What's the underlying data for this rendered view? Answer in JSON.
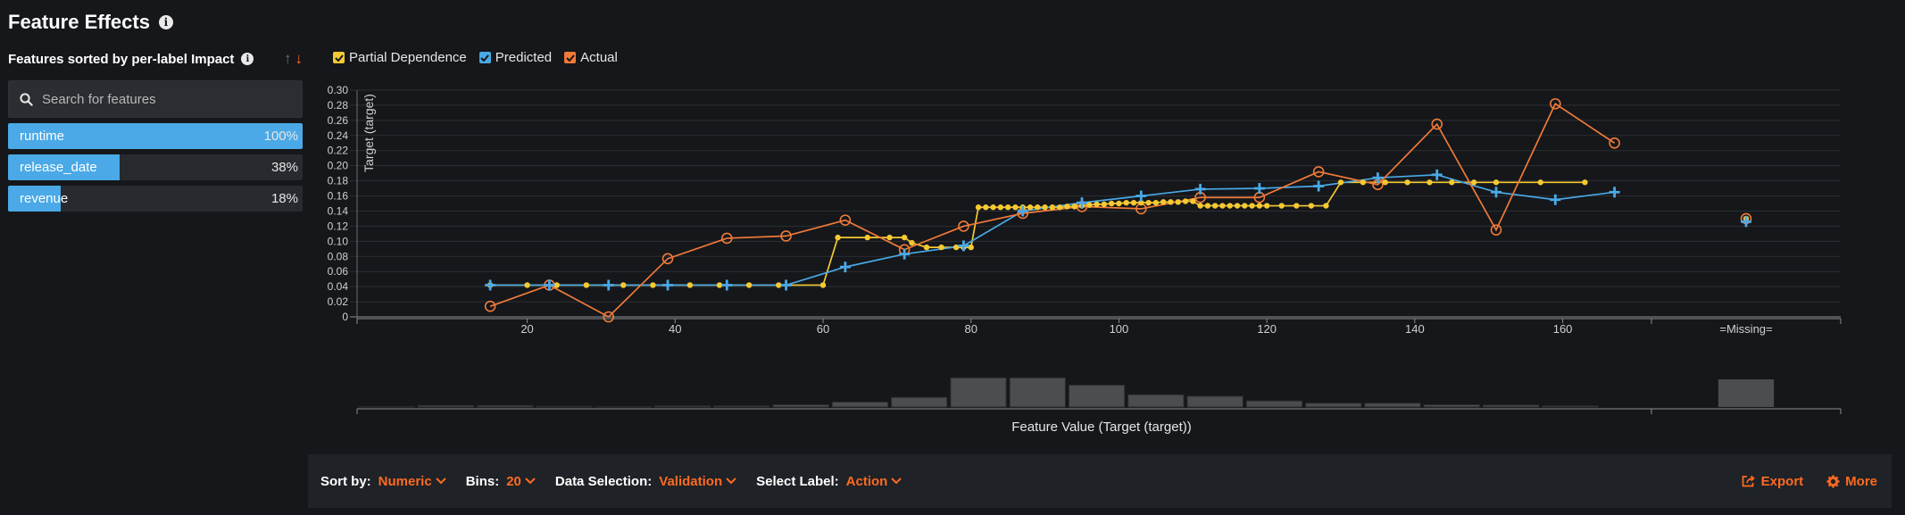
{
  "page": {
    "title": "Feature Effects"
  },
  "features": {
    "sort_label": "Features sorted by per-label Impact",
    "search_placeholder": "Search for features",
    "items": [
      {
        "name": "runtime",
        "impact_label": "100%",
        "impact": 1.0
      },
      {
        "name": "release_date",
        "impact_label": "38%",
        "impact": 0.38
      },
      {
        "name": "revenue",
        "impact_label": "18%",
        "impact": 0.18
      }
    ]
  },
  "legend": {
    "items": [
      {
        "label": "Partial Dependence",
        "color": "#f5c932"
      },
      {
        "label": "Predicted",
        "color": "#4aa9e6"
      },
      {
        "label": "Actual",
        "color": "#f07a3a"
      }
    ]
  },
  "chart_data": {
    "type": "line",
    "ylabel": "Target (target)",
    "xlabel": "Feature Value (Target (target))",
    "xlim": [
      -3,
      172
    ],
    "ylim": [
      0,
      0.3
    ],
    "x_ticks": [
      "20",
      "40",
      "60",
      "80",
      "100",
      "120",
      "140",
      "160"
    ],
    "x_tick_values": [
      20,
      40,
      60,
      80,
      100,
      120,
      140,
      160
    ],
    "y_ticks": [
      "0",
      "0.02",
      "0.04",
      "0.06",
      "0.08",
      "0.10",
      "0.12",
      "0.14",
      "0.16",
      "0.18",
      "0.20",
      "0.22",
      "0.24",
      "0.26",
      "0.28",
      "0.30"
    ],
    "y_tick_values": [
      0,
      0.02,
      0.04,
      0.06,
      0.08,
      0.1,
      0.12,
      0.14,
      0.16,
      0.18,
      0.2,
      0.22,
      0.24,
      0.26,
      0.28,
      0.3
    ],
    "missing_label": "=Missing=",
    "grid": true,
    "series": [
      {
        "name": "Partial Dependence",
        "color": "#f5c932",
        "marker": "dot",
        "x": [
          15,
          20,
          24,
          28,
          33,
          37,
          42,
          46,
          50,
          54,
          60,
          62,
          66,
          69,
          71,
          72,
          74,
          76,
          78,
          79,
          80,
          81,
          82,
          83,
          84,
          85,
          86,
          87,
          88,
          89,
          90,
          91,
          92,
          93,
          94,
          95,
          96,
          97,
          98,
          99,
          100,
          101,
          102,
          103,
          104,
          105,
          106,
          107,
          108,
          109,
          110,
          111,
          112,
          113,
          114,
          115,
          116,
          117,
          118,
          119,
          120,
          122,
          124,
          126,
          128,
          130,
          133,
          136,
          139,
          142,
          145,
          148,
          151,
          157,
          163
        ],
        "y": [
          0.042,
          0.042,
          0.042,
          0.042,
          0.042,
          0.042,
          0.042,
          0.042,
          0.042,
          0.042,
          0.042,
          0.105,
          0.105,
          0.105,
          0.105,
          0.098,
          0.092,
          0.092,
          0.092,
          0.092,
          0.092,
          0.145,
          0.145,
          0.145,
          0.145,
          0.145,
          0.145,
          0.145,
          0.145,
          0.145,
          0.145,
          0.145,
          0.145,
          0.146,
          0.146,
          0.147,
          0.148,
          0.149,
          0.149,
          0.15,
          0.15,
          0.151,
          0.151,
          0.151,
          0.151,
          0.151,
          0.152,
          0.152,
          0.152,
          0.153,
          0.153,
          0.147,
          0.147,
          0.147,
          0.147,
          0.147,
          0.147,
          0.147,
          0.147,
          0.147,
          0.147,
          0.147,
          0.147,
          0.147,
          0.147,
          0.178,
          0.178,
          0.178,
          0.178,
          0.178,
          0.178,
          0.178,
          0.178,
          0.178,
          0.178
        ],
        "missing": 0.13
      },
      {
        "name": "Predicted",
        "color": "#4aa9e6",
        "marker": "plus",
        "x": [
          15,
          23,
          31,
          39,
          47,
          55,
          63,
          71,
          79,
          87,
          95,
          103,
          111,
          119,
          127,
          135,
          143,
          151,
          159,
          167
        ],
        "y": [
          0.042,
          0.042,
          0.042,
          0.042,
          0.042,
          0.042,
          0.066,
          0.083,
          0.094,
          0.14,
          0.151,
          0.16,
          0.169,
          0.17,
          0.173,
          0.184,
          0.188,
          0.165,
          0.155,
          0.165
        ],
        "missing": 0.126
      },
      {
        "name": "Actual",
        "color": "#f07a3a",
        "marker": "circle",
        "x": [
          15,
          23,
          31,
          39,
          47,
          55,
          63,
          71,
          79,
          87,
          95,
          103,
          111,
          119,
          127,
          135,
          143,
          151,
          159,
          167
        ],
        "y": [
          0.014,
          0.042,
          0.0,
          0.077,
          0.104,
          0.107,
          0.128,
          0.089,
          0.12,
          0.137,
          0.146,
          0.143,
          0.158,
          0.158,
          0.192,
          0.175,
          0.255,
          0.115,
          0.282,
          0.23
        ],
        "missing": 0.13
      }
    ],
    "histogram": {
      "x_start": [
        -3,
        5,
        13,
        21,
        29,
        37,
        45,
        53,
        61,
        69,
        77,
        85,
        93,
        101,
        109,
        117,
        125,
        133,
        141,
        149,
        157
      ],
      "values": [
        0.0,
        0.04,
        0.04,
        0.02,
        0.0,
        0.03,
        0.03,
        0.06,
        0.13,
        0.25,
        0.76,
        0.76,
        0.57,
        0.32,
        0.28,
        0.16,
        0.1,
        0.1,
        0.06,
        0.05,
        0.03
      ],
      "missing_value": 0.72
    }
  },
  "toolbar": {
    "sort_by_label": "Sort by:",
    "sort_by_value": "Numeric",
    "bins_label": "Bins:",
    "bins_value": "20",
    "data_selection_label": "Data Selection:",
    "data_selection_value": "Validation",
    "select_label_label": "Select Label:",
    "select_label_value": "Action",
    "export_label": "Export",
    "more_label": "More"
  }
}
